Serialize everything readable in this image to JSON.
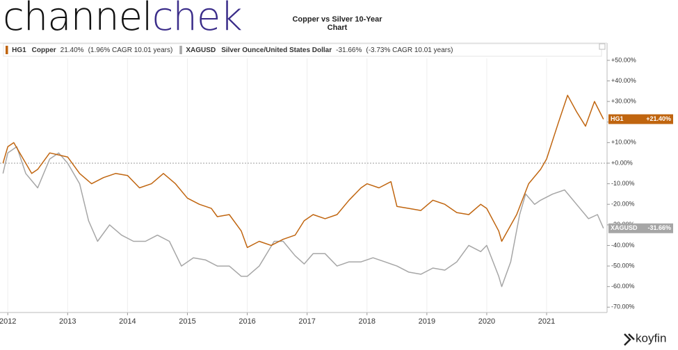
{
  "brand": {
    "part1": "channel",
    "part2": "chek"
  },
  "footer": {
    "brand": "koyfin"
  },
  "chart_data": {
    "type": "line",
    "title": "Copper vs Silver 10-Year Chart",
    "xlim": [
      2011.87,
      2022.01
    ],
    "xticks": [
      2012,
      2013,
      2014,
      2015,
      2016,
      2017,
      2018,
      2019,
      2020,
      2021
    ],
    "ylim": [
      -72.6,
      58.4
    ],
    "yticks": [
      {
        "value": 50,
        "label": "+50.00%"
      },
      {
        "value": 40,
        "label": "+40.00%"
      },
      {
        "value": 30,
        "label": "+30.00%"
      },
      {
        "value": 20,
        "label": "+20.00%"
      },
      {
        "value": 10,
        "label": "+10.00%"
      },
      {
        "value": 0,
        "label": "+0.00%"
      },
      {
        "value": -10,
        "label": "-10.00%"
      },
      {
        "value": -20,
        "label": "-20.00%"
      },
      {
        "value": -30,
        "label": "-30.00%"
      },
      {
        "value": -40,
        "label": "-40.00%"
      },
      {
        "value": -50,
        "label": "-50.00%"
      },
      {
        "value": -60,
        "label": "-60.00%"
      },
      {
        "value": -70,
        "label": "-70.00%"
      }
    ],
    "grid": true,
    "series": [
      {
        "ticker": "HG1",
        "name": "Copper",
        "change": "21.40%",
        "cagr": "(1.96% CAGR 10.01 years)",
        "end_label": "+21.40%",
        "color": "#c0650f",
        "x": [
          2011.92,
          2012.0,
          2012.1,
          2012.2,
          2012.4,
          2012.5,
          2012.7,
          2012.85,
          2013.0,
          2013.2,
          2013.4,
          2013.6,
          2013.8,
          2014.0,
          2014.2,
          2014.4,
          2014.6,
          2014.8,
          2015.0,
          2015.2,
          2015.4,
          2015.5,
          2015.7,
          2015.9,
          2016.0,
          2016.2,
          2016.4,
          2016.6,
          2016.8,
          2016.95,
          2017.1,
          2017.3,
          2017.5,
          2017.7,
          2017.9,
          2018.0,
          2018.2,
          2018.4,
          2018.5,
          2018.7,
          2018.9,
          2019.1,
          2019.3,
          2019.5,
          2019.7,
          2019.9,
          2020.0,
          2020.2,
          2020.25,
          2020.5,
          2020.7,
          2020.9,
          2021.0,
          2021.2,
          2021.35,
          2021.5,
          2021.65,
          2021.8,
          2021.95
        ],
        "values": [
          0,
          8,
          10,
          5,
          -5,
          -3,
          5,
          4,
          3,
          -5,
          -10,
          -7,
          -5,
          -6,
          -12,
          -10,
          -5,
          -10,
          -17,
          -20,
          -22,
          -26,
          -25,
          -33,
          -41,
          -38,
          -40,
          -37,
          -35,
          -28,
          -25,
          -27,
          -25,
          -18,
          -12,
          -10,
          -12,
          -9,
          -21,
          -22,
          -23,
          -18,
          -20,
          -24,
          -25,
          -20,
          -22,
          -33,
          -38,
          -25,
          -10,
          -3,
          2,
          20,
          33,
          25,
          18,
          30,
          21.4
        ]
      },
      {
        "ticker": "XAGUSD",
        "name": "Silver Ounce/United States Dollar",
        "change": "-31.66%",
        "cagr": "(-3.73% CAGR 10.01 years)",
        "end_label": "-31.66%",
        "color": "#a6a6a6",
        "x": [
          2011.92,
          2012.0,
          2012.15,
          2012.3,
          2012.5,
          2012.7,
          2012.85,
          2013.0,
          2013.2,
          2013.35,
          2013.5,
          2013.7,
          2013.9,
          2014.1,
          2014.3,
          2014.5,
          2014.7,
          2014.9,
          2015.1,
          2015.3,
          2015.5,
          2015.7,
          2015.9,
          2016.0,
          2016.2,
          2016.45,
          2016.6,
          2016.8,
          2016.95,
          2017.1,
          2017.3,
          2017.5,
          2017.7,
          2017.9,
          2018.1,
          2018.3,
          2018.5,
          2018.7,
          2018.9,
          2019.1,
          2019.3,
          2019.5,
          2019.7,
          2019.9,
          2020.0,
          2020.2,
          2020.25,
          2020.4,
          2020.55,
          2020.65,
          2020.8,
          2020.9,
          2021.1,
          2021.3,
          2021.5,
          2021.7,
          2021.85,
          2021.95
        ],
        "values": [
          -5,
          5,
          8,
          -5,
          -12,
          2,
          5,
          0,
          -10,
          -28,
          -38,
          -30,
          -35,
          -38,
          -38,
          -35,
          -38,
          -50,
          -46,
          -47,
          -50,
          -50,
          -55,
          -55,
          -50,
          -38,
          -38,
          -45,
          -49,
          -44,
          -44,
          -50,
          -48,
          -48,
          -46,
          -48,
          -50,
          -53,
          -54,
          -51,
          -52,
          -48,
          -40,
          -43,
          -40,
          -55,
          -60,
          -48,
          -25,
          -15,
          -20,
          -18,
          -15,
          -13,
          -20,
          -27,
          -25,
          -31.66
        ]
      }
    ]
  }
}
